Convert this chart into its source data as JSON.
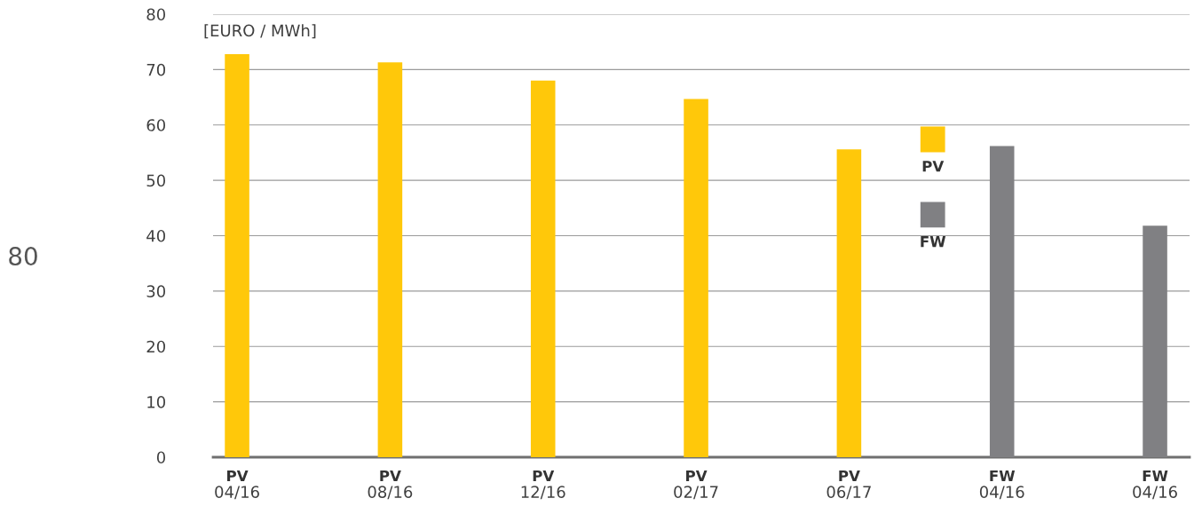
{
  "chart_data": {
    "type": "bar",
    "ylabel": "[EURO / MWh]",
    "categories": [
      "PV\n04/16",
      "PV\n08/16",
      "PV\n12/16",
      "PV\n02/17",
      "PV\n06/17",
      "FW\n04/16",
      "FW\n04/16"
    ],
    "series": [
      {
        "name": "PV",
        "color": "#ffc80a",
        "values": [
          72.8,
          71.3,
          68.0,
          64.7,
          55.6,
          null,
          null
        ]
      },
      {
        "name": "FW",
        "color": "#808083",
        "values": [
          null,
          null,
          null,
          null,
          null,
          56.2,
          41.8
        ]
      }
    ],
    "ylim": [
      0,
      80
    ],
    "yticks": [
      0,
      10,
      20,
      30,
      40,
      50,
      60,
      70,
      80
    ],
    "grid": "y",
    "legend": "right",
    "annotations": [
      "80"
    ]
  }
}
